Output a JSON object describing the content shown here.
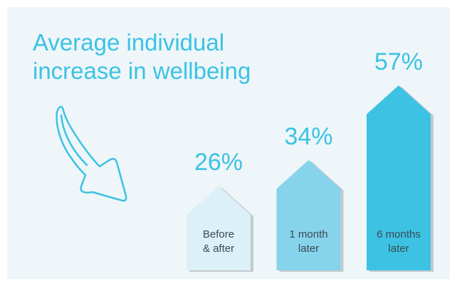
{
  "chart_data": {
    "type": "bar",
    "title": "Average individual\nincrease in wellbeing",
    "categories": [
      "Before\n& after",
      "1 month\nlater",
      "6 months\nlater"
    ],
    "series": [
      {
        "values": [
          26,
          34,
          57
        ],
        "value_labels": [
          "26%",
          "34%",
          "57%"
        ],
        "colors": [
          "#dcf0f8",
          "#86d3ec",
          "#3cc2e3"
        ]
      }
    ]
  }
}
